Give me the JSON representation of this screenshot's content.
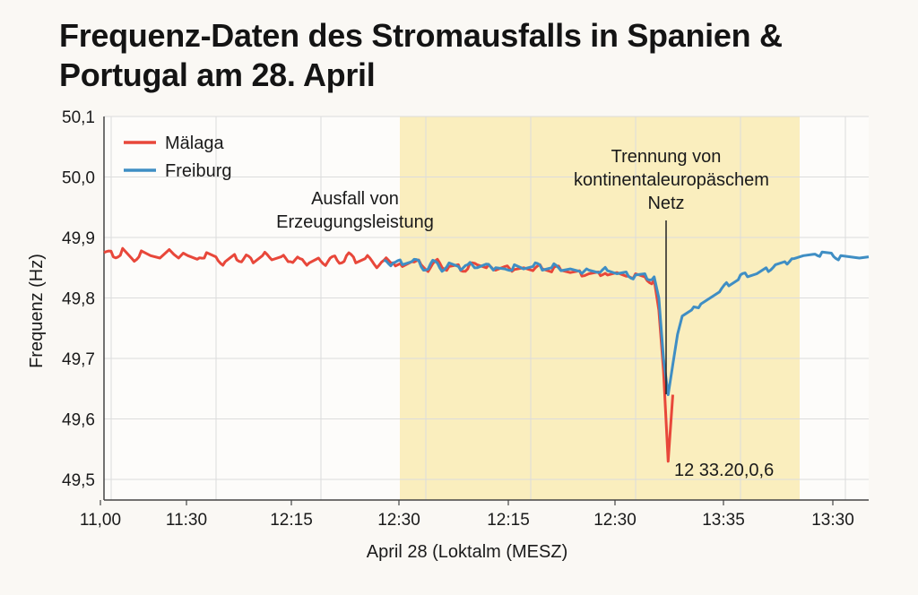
{
  "title_line1": "Frequenz-Daten des Stromausfalls in Spanien &",
  "title_line2": "Portugal am 28. April",
  "chart_data": {
    "type": "line",
    "xlabel": "April 28 (Loktalm (MESZ)",
    "ylabel": "Frequenz (Hz)",
    "ylim": [
      49.47,
      50.1
    ],
    "x_ticks": [
      "11,00",
      "11:30",
      "12:15",
      "12:30",
      "12:15",
      "12:30",
      "13:35",
      "13:30"
    ],
    "y_ticks": [
      "50,1",
      "50,0",
      "49,9",
      "49,8",
      "49,7",
      "49,6",
      "49,5"
    ],
    "y_tick_values": [
      50.1,
      50.0,
      49.9,
      49.8,
      49.7,
      49.6,
      49.5
    ],
    "grid": true,
    "legend_position": "top-left",
    "highlight_color": "#faeebe",
    "series": [
      {
        "name": "Mälaga",
        "color": "#e8473a",
        "x": [
          0,
          0.1,
          0.2,
          0.3,
          0.4,
          0.5,
          0.6,
          0.7,
          0.75,
          0.8,
          0.85,
          0.9,
          1.0,
          1.1,
          1.2,
          1.3,
          1.4,
          1.5,
          1.6,
          1.7,
          1.8,
          1.9,
          2.0,
          2.1,
          2.2,
          2.3,
          2.4,
          2.5,
          2.6,
          2.7,
          2.8,
          2.9,
          3.0,
          3.1,
          3.2,
          3.3,
          3.4,
          3.5,
          3.6,
          3.7,
          3.8,
          3.9,
          4.0,
          4.1,
          4.2,
          4.3,
          4.4,
          4.5,
          4.6,
          4.7,
          4.8,
          4.9,
          5.0,
          5.1,
          5.2,
          5.3,
          5.4,
          5.5,
          5.6,
          5.7,
          5.8,
          5.9,
          5.95,
          6.0,
          6.05,
          6.1
        ],
        "values": [
          49.875,
          49.868,
          49.882,
          49.865,
          49.878,
          49.87,
          49.866,
          49.88,
          49.872,
          49.866,
          49.874,
          49.87,
          49.864,
          49.875,
          49.868,
          49.86,
          49.872,
          49.865,
          49.858,
          49.87,
          49.863,
          49.868,
          49.86,
          49.865,
          49.858,
          49.866,
          49.86,
          49.862,
          49.87,
          49.858,
          49.865,
          49.855,
          49.862,
          49.858,
          49.852,
          49.86,
          49.855,
          49.85,
          49.858,
          49.852,
          49.855,
          49.848,
          49.855,
          49.85,
          49.846,
          49.852,
          49.847,
          49.85,
          49.845,
          49.848,
          49.843,
          49.846,
          49.842,
          49.845,
          49.84,
          49.843,
          49.838,
          49.842,
          49.836,
          49.84,
          49.835,
          49.83,
          49.78,
          49.68,
          49.53,
          49.64
        ]
      },
      {
        "name": "Freiburg",
        "color": "#3f8ec4",
        "x": [
          3.0,
          3.1,
          3.2,
          3.3,
          3.4,
          3.5,
          3.6,
          3.7,
          3.8,
          3.9,
          4.0,
          4.1,
          4.2,
          4.3,
          4.4,
          4.5,
          4.6,
          4.7,
          4.8,
          4.9,
          5.0,
          5.1,
          5.2,
          5.3,
          5.4,
          5.5,
          5.6,
          5.7,
          5.8,
          5.9,
          5.95,
          6.0,
          6.05,
          6.1,
          6.15,
          6.2,
          6.3,
          6.4,
          6.5,
          6.6,
          6.7,
          6.8,
          6.9,
          7.0,
          7.1,
          7.2,
          7.3,
          7.4,
          7.5,
          7.6,
          7.7,
          7.8,
          7.9,
          8.0,
          8.1,
          8.2
        ],
        "values": [
          49.862,
          49.858,
          49.855,
          49.86,
          49.852,
          49.856,
          49.85,
          49.858,
          49.852,
          49.855,
          49.85,
          49.856,
          49.85,
          49.848,
          49.855,
          49.848,
          49.852,
          49.846,
          49.85,
          49.845,
          49.848,
          49.844,
          49.846,
          49.842,
          49.845,
          49.84,
          49.843,
          49.838,
          49.84,
          49.835,
          49.8,
          49.7,
          49.64,
          49.69,
          49.74,
          49.77,
          49.78,
          49.79,
          49.8,
          49.81,
          49.82,
          49.83,
          49.835,
          49.84,
          49.85,
          49.855,
          49.86,
          49.865,
          49.87,
          49.872,
          49.876,
          49.874,
          49.87,
          49.868,
          49.866,
          49.868
        ]
      }
    ],
    "annotations": [
      {
        "lines": [
          "Ausfall von",
          "Erzeugungsleistung"
        ]
      },
      {
        "lines": [
          "Trennung von",
          "kontinentaleuropäschem",
          "Netz"
        ]
      },
      {
        "lines": [
          "12 33.20,0,6"
        ]
      }
    ]
  }
}
